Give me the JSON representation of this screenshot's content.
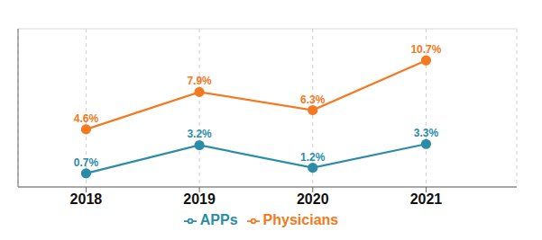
{
  "chart_data": {
    "type": "line",
    "x": [
      2018,
      2019,
      2020,
      2021
    ],
    "series": [
      {
        "name": "Physicians",
        "color": "#F47920",
        "values": [
          4.6,
          7.9,
          6.3,
          10.7
        ],
        "value_labels": [
          "4.6%",
          "7.9%",
          "6.3%",
          "10.7%"
        ]
      },
      {
        "name": "APPs",
        "color": "#2B8CA8",
        "values": [
          0.7,
          3.2,
          1.2,
          3.3
        ],
        "value_labels": [
          "0.7%",
          "3.2%",
          "1.2%",
          "3.3%"
        ]
      }
    ],
    "xlim": [
      2017.4,
      2021.8
    ],
    "xticks": [
      2018,
      2019,
      2020,
      2021
    ],
    "ylim": [
      -0.5,
      13.5
    ],
    "yticks": [
      0,
      3,
      6,
      9,
      12
    ],
    "grid": true,
    "legend": "bottom",
    "data_labels": true,
    "tick_labels": "x",
    "marker": "circle"
  }
}
